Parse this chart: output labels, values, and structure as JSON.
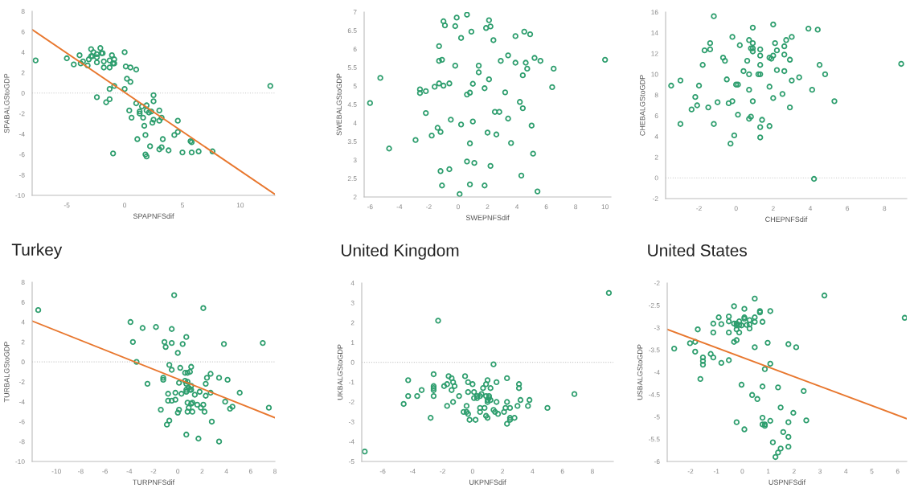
{
  "chart_data": [
    {
      "type": "scatter",
      "xlabel": "SPAPNFSdif",
      "ylabel": "SPABALGStoGDP",
      "xlim": [
        -8,
        13
      ],
      "ylim": [
        -10,
        8
      ],
      "xticks": [
        -5,
        0,
        5,
        10
      ],
      "yticks": [
        -10,
        -8,
        -6,
        -4,
        -2,
        0,
        2,
        4,
        6,
        8
      ],
      "grid": false,
      "ref_lines": [
        {
          "axis": "y",
          "value": 0,
          "line_style": "dotted",
          "color": "#c8c8c8"
        }
      ],
      "series": [
        {
          "color": "#2e9e6e",
          "marker": "circle",
          "x": [
            -7.7,
            -5.0,
            -4.4,
            -3.9,
            -3.8,
            -3.6,
            -3.2,
            -3.1,
            -2.9,
            -2.9,
            -2.8,
            -2.7,
            -2.4,
            -2.4,
            -2.4,
            -2.4,
            -2.1,
            -2.0,
            -1.9,
            -1.8,
            -1.8,
            -1.6,
            -1.3,
            -1.3,
            -1.3,
            -1.3,
            -1.1,
            -1.0,
            -1.0,
            -0.9,
            -0.9,
            -0.9,
            0.0,
            0.0,
            0.1,
            0.2,
            0.5,
            0.5,
            1.0,
            1.0,
            0.4,
            0.6,
            1.1,
            1.3,
            1.3,
            1.5,
            1.6,
            1.7,
            1.8,
            1.8,
            1.9,
            1.9,
            1.9,
            2.1,
            2.2,
            2.3,
            2.4,
            2.5,
            2.5,
            2.5,
            3.0,
            3.0,
            3.0,
            3.2,
            3.2,
            3.3,
            3.8,
            4.3,
            4.6,
            4.6,
            5.0,
            5.7,
            5.8,
            5.8,
            6.4,
            7.6,
            12.6
          ],
          "values": [
            3.2,
            3.4,
            2.8,
            3.7,
            2.9,
            3.1,
            2.7,
            3.3,
            4.3,
            3.6,
            3.6,
            4.0,
            3.8,
            3.5,
            3.0,
            -0.4,
            4.4,
            3.9,
            3.9,
            3.1,
            2.5,
            -0.9,
            0.4,
            3.2,
            2.5,
            -0.6,
            3.7,
            2.9,
            -5.9,
            3.3,
            2.9,
            0.7,
            4.0,
            0.4,
            2.6,
            1.4,
            2.5,
            1.1,
            2.3,
            -1.0,
            -1.7,
            -2.4,
            -4.5,
            -2.0,
            -1.8,
            -1.3,
            -2.4,
            -3.2,
            -4.1,
            -6.0,
            -1.2,
            -1.7,
            -6.2,
            -1.9,
            -5.2,
            -1.8,
            -2.9,
            -0.8,
            -0.2,
            -2.6,
            -1.7,
            -2.7,
            -5.5,
            -5.3,
            -2.4,
            -4.5,
            -5.6,
            -4.1,
            -2.7,
            -3.8,
            -5.8,
            -4.7,
            -4.8,
            -5.8,
            -5.7,
            -5.7,
            0.7
          ]
        },
        {
          "type": "line",
          "color": "#e8772e",
          "line_style": "solid",
          "x": [
            -8,
            13
          ],
          "values": [
            6.2,
            -9.9
          ]
        }
      ]
    },
    {
      "type": "scatter",
      "xlabel": "SWEPNFSdif",
      "ylabel": "SWEBALGStoGDP",
      "xlim": [
        -6.4,
        10.4
      ],
      "ylim": [
        2,
        7
      ],
      "xticks": [
        -6,
        -4,
        -2,
        0,
        2,
        4,
        6,
        8,
        10
      ],
      "yticks": [
        2,
        2.5,
        3,
        3.5,
        4,
        4.5,
        5,
        5.5,
        6,
        6.5,
        7
      ],
      "grid": false,
      "series": [
        {
          "color": "#2e9e6e",
          "marker": "circle",
          "x": [
            -6.0,
            -5.3,
            -4.7,
            -2.9,
            -2.6,
            -2.6,
            -2.2,
            -2.2,
            -1.8,
            -1.6,
            -1.4,
            -1.3,
            -1.3,
            -1.3,
            -1.2,
            -1.2,
            -1.1,
            -1.1,
            -1.0,
            -1.0,
            -0.9,
            -0.6,
            -0.6,
            -0.5,
            -0.2,
            -0.2,
            -0.1,
            0.1,
            0.2,
            0.2,
            0.6,
            0.6,
            0.6,
            0.8,
            0.8,
            0.8,
            0.9,
            1.0,
            1.0,
            1.1,
            1.4,
            1.4,
            1.8,
            1.8,
            1.9,
            2.0,
            2.1,
            2.1,
            2.2,
            2.2,
            2.4,
            2.5,
            2.6,
            2.8,
            2.9,
            3.2,
            3.4,
            3.4,
            3.6,
            3.9,
            3.9,
            4.2,
            4.3,
            4.4,
            4.4,
            4.5,
            4.6,
            4.7,
            4.9,
            5.0,
            5.1,
            5.2,
            5.4,
            5.6,
            6.4,
            6.5,
            10.0
          ],
          "values": [
            4.54,
            5.22,
            3.31,
            3.54,
            4.91,
            4.81,
            4.86,
            4.27,
            3.66,
            4.98,
            3.87,
            6.08,
            5.68,
            5.07,
            3.76,
            2.7,
            5.71,
            2.31,
            6.75,
            5.01,
            6.64,
            5.07,
            2.75,
            4.09,
            6.62,
            5.55,
            6.85,
            2.08,
            3.96,
            6.3,
            6.93,
            4.77,
            2.96,
            4.82,
            3.45,
            2.34,
            6.47,
            5.06,
            4.04,
            2.92,
            5.55,
            5.37,
            4.94,
            2.31,
            6.57,
            3.74,
            5.18,
            6.78,
            6.61,
            2.84,
            6.24,
            4.3,
            3.69,
            4.3,
            5.68,
            4.83,
            5.83,
            4.12,
            3.46,
            6.35,
            5.63,
            4.57,
            2.58,
            4.4,
            5.29,
            6.47,
            5.63,
            5.47,
            6.4,
            3.93,
            3.17,
            5.76,
            2.15,
            5.68,
            4.97,
            5.47,
            5.71
          ]
        }
      ]
    },
    {
      "type": "scatter",
      "xlabel": "CHEPNFSdif",
      "ylabel": "CHEBALGStoGDP",
      "xlim": [
        -3.8,
        9.2
      ],
      "ylim": [
        -2,
        16
      ],
      "xticks": [
        -2,
        0,
        2,
        4,
        6,
        8
      ],
      "yticks": [
        -2,
        0,
        2,
        4,
        6,
        8,
        10,
        12,
        14,
        16
      ],
      "grid": false,
      "ref_lines": [
        {
          "axis": "y",
          "value": 0,
          "line_style": "dotted",
          "color": "#c8c8c8"
        }
      ],
      "series": [
        {
          "color": "#2e9e6e",
          "marker": "circle",
          "x": [
            -3.5,
            -3.0,
            -3.0,
            -2.4,
            -2.2,
            -2.1,
            -2.0,
            -1.8,
            -1.7,
            -1.5,
            -1.4,
            -1.4,
            -1.2,
            -1.2,
            -1.0,
            -0.7,
            -0.6,
            -0.5,
            -0.4,
            -0.3,
            -0.2,
            -0.2,
            -0.1,
            0.0,
            0.1,
            0.1,
            0.2,
            0.4,
            0.6,
            0.7,
            0.7,
            0.7,
            0.7,
            0.8,
            0.8,
            0.9,
            0.9,
            0.9,
            0.9,
            0.9,
            1.2,
            1.3,
            1.3,
            1.3,
            1.3,
            1.3,
            1.3,
            1.4,
            1.8,
            1.8,
            1.8,
            1.9,
            2.0,
            2.0,
            2.0,
            2.1,
            2.2,
            2.2,
            2.5,
            2.6,
            2.6,
            2.6,
            2.7,
            2.9,
            2.9,
            3.0,
            3.0,
            3.4,
            3.9,
            4.1,
            4.2,
            4.4,
            4.5,
            4.8,
            5.3,
            8.9
          ],
          "values": [
            8.9,
            9.4,
            5.2,
            6.6,
            7.8,
            7.0,
            8.9,
            10.9,
            12.3,
            6.8,
            12.4,
            13.0,
            15.6,
            5.2,
            7.3,
            11.6,
            11.3,
            9.5,
            7.2,
            3.3,
            13.6,
            7.4,
            4.1,
            9.0,
            9.0,
            6.1,
            12.8,
            10.3,
            11.3,
            5.7,
            13.3,
            10.0,
            8.5,
            12.5,
            5.9,
            12.5,
            14.5,
            13.0,
            12.2,
            7.4,
            10.0,
            10.0,
            12.4,
            11.8,
            10.9,
            4.9,
            3.9,
            5.6,
            11.6,
            8.8,
            5.0,
            11.5,
            11.8,
            14.8,
            7.7,
            13.0,
            12.3,
            10.4,
            8.1,
            12.7,
            11.9,
            10.3,
            13.3,
            11.4,
            6.8,
            13.6,
            9.4,
            9.7,
            14.4,
            8.5,
            -0.1,
            14.3,
            10.9,
            10.0,
            7.4,
            11.0
          ]
        }
      ]
    },
    {
      "type": "scatter",
      "title": "Turkey",
      "xlabel": "TURPNFSdif",
      "ylabel": "TURBALGStoGDP",
      "xlim": [
        -12,
        8
      ],
      "ylim": [
        -10,
        8
      ],
      "xticks": [
        -10,
        -8,
        -6,
        -4,
        -2,
        0,
        2,
        4,
        6,
        8
      ],
      "yticks": [
        -10,
        -8,
        -6,
        -4,
        -2,
        0,
        2,
        4,
        6,
        8
      ],
      "grid": false,
      "ref_lines": [
        {
          "axis": "y",
          "value": 0,
          "line_style": "dotted",
          "color": "#c8c8c8"
        }
      ],
      "series": [
        {
          "color": "#2e9e6e",
          "marker": "circle",
          "x": [
            -11.5,
            -3.9,
            -3.7,
            -3.4,
            -2.9,
            -2.5,
            -1.8,
            -1.4,
            -1.2,
            -1.2,
            -1.1,
            -1.0,
            -0.9,
            -0.8,
            -0.8,
            -0.7,
            -0.7,
            -0.5,
            -0.5,
            -0.5,
            -0.5,
            -0.3,
            -0.2,
            -0.2,
            0.0,
            0.0,
            0.1,
            0.1,
            0.2,
            0.3,
            0.4,
            0.6,
            0.6,
            0.7,
            0.7,
            0.7,
            0.7,
            0.7,
            0.8,
            0.8,
            0.8,
            0.8,
            0.9,
            0.9,
            1.0,
            1.0,
            1.1,
            1.1,
            1.1,
            1.1,
            1.2,
            1.2,
            1.4,
            1.6,
            1.7,
            1.8,
            1.9,
            2.1,
            2.1,
            2.2,
            2.3,
            2.3,
            2.4,
            2.7,
            2.7,
            2.8,
            3.4,
            3.4,
            3.8,
            3.9,
            4.1,
            4.3,
            4.5,
            5.1,
            7.0,
            7.5
          ],
          "values": [
            5.2,
            4.0,
            2.0,
            0.0,
            3.4,
            -2.2,
            3.5,
            -4.8,
            -1.6,
            -1.8,
            2.0,
            1.5,
            -6.3,
            -3.2,
            -3.9,
            -0.3,
            -5.9,
            1.9,
            3.3,
            -3.9,
            -0.8,
            6.7,
            -3.1,
            -3.8,
            0.9,
            -5.1,
            -4.8,
            -2.1,
            -0.6,
            -3.2,
            1.8,
            -1.1,
            -1.9,
            -2.2,
            2.5,
            -3.0,
            -7.3,
            -2.8,
            -1.1,
            -2.0,
            -4.1,
            -5.0,
            -2.6,
            -4.6,
            -2.8,
            -1.0,
            -2.4,
            -4.2,
            -2.8,
            -0.5,
            -4.1,
            -5.0,
            -3.3,
            -4.3,
            -7.7,
            -3.0,
            -4.6,
            5.4,
            -4.3,
            -5.0,
            -3.4,
            -2.2,
            -1.6,
            -1.2,
            -3.1,
            -6.0,
            -1.6,
            -8.0,
            1.8,
            -4.0,
            -1.8,
            -4.7,
            -4.5,
            -3.1,
            1.9,
            -4.6
          ]
        },
        {
          "type": "line",
          "color": "#e8772e",
          "line_style": "solid",
          "x": [
            -12,
            8
          ],
          "values": [
            4.1,
            -5.6
          ]
        }
      ]
    },
    {
      "type": "scatter",
      "title": "United Kingdom",
      "xlabel": "UKPNFSdif",
      "ylabel": "UKBALGStoGDP",
      "xlim": [
        -7.4,
        9.4
      ],
      "ylim": [
        -5,
        4
      ],
      "xticks": [
        -6,
        -4,
        -2,
        0,
        2,
        4,
        6,
        8
      ],
      "yticks": [
        -5,
        -4,
        -3,
        -2,
        -1,
        0,
        1,
        2,
        3,
        4
      ],
      "grid": false,
      "ref_lines": [
        {
          "axis": "y",
          "value": 0,
          "line_style": "dotted",
          "color": "#c8c8c8"
        }
      ],
      "series": [
        {
          "color": "#2e9e6e",
          "marker": "circle",
          "x": [
            -7.2,
            -4.6,
            -4.3,
            -4.3,
            -3.7,
            -3.4,
            -2.8,
            -2.6,
            -2.6,
            -2.6,
            -2.6,
            -2.6,
            -2.3,
            -1.9,
            -1.7,
            -1.7,
            -1.6,
            -1.4,
            -1.4,
            -1.3,
            -1.3,
            -1.2,
            -0.9,
            -0.6,
            -0.5,
            -0.4,
            -0.4,
            -0.3,
            -0.3,
            -0.3,
            -0.2,
            0.0,
            0.1,
            0.1,
            0.2,
            0.3,
            0.3,
            0.5,
            0.5,
            0.5,
            0.6,
            0.7,
            0.8,
            0.9,
            0.9,
            0.9,
            1.0,
            1.0,
            1.0,
            1.0,
            1.1,
            1.1,
            1.2,
            1.2,
            1.4,
            1.4,
            1.5,
            1.6,
            1.6,
            1.7,
            2.1,
            2.2,
            2.3,
            2.3,
            2.5,
            2.5,
            2.5,
            2.3,
            2.8,
            3.0,
            3.1,
            3.1,
            3.2,
            3.7,
            3.8,
            5.0,
            6.8,
            9.1
          ],
          "values": [
            -4.5,
            -2.1,
            -0.9,
            -1.7,
            -1.7,
            -1.4,
            -2.8,
            -0.6,
            -1.2,
            -1.3,
            -1.4,
            -1.7,
            2.1,
            -1.2,
            -1.1,
            -2.2,
            -0.7,
            -0.8,
            -1.4,
            -1.0,
            -2.0,
            -1.2,
            -1.7,
            -2.5,
            -0.7,
            -2.5,
            -2.2,
            -2.6,
            -1.0,
            -1.5,
            -2.9,
            -1.1,
            -1.5,
            -1.8,
            -2.9,
            -1.8,
            -1.7,
            -2.5,
            -1.7,
            -2.3,
            -1.6,
            -1.3,
            -2.3,
            -1.1,
            -1.7,
            -2.7,
            -2.8,
            -0.9,
            -2.0,
            -1.9,
            -1.7,
            -1.8,
            -1.9,
            -1.3,
            -2.4,
            -0.1,
            -2.5,
            -1.0,
            -2.0,
            -2.6,
            -2.5,
            -2.3,
            -2.0,
            -0.8,
            -2.3,
            -2.8,
            -2.9,
            -3.1,
            -2.8,
            -2.2,
            -1.1,
            -1.3,
            -1.9,
            -2.2,
            -1.9,
            -2.3,
            -1.6,
            3.5
          ]
        }
      ]
    },
    {
      "type": "scatter",
      "title": "United States",
      "xlabel": "USPNFSdif",
      "ylabel": "USBALGStoGDP",
      "xlim": [
        -2.9,
        6.35
      ],
      "ylim": [
        -6,
        -2
      ],
      "xticks": [
        -2,
        -1,
        0,
        1,
        2,
        3,
        4,
        5,
        6
      ],
      "yticks": [
        -6,
        -5.5,
        -5,
        -4.5,
        -4,
        -3.5,
        -3,
        -2.5,
        -2
      ],
      "grid": false,
      "series": [
        {
          "color": "#2e9e6e",
          "marker": "circle",
          "x": [
            -2.63,
            -2.02,
            -1.82,
            -1.82,
            -1.72,
            -1.62,
            -1.52,
            -1.52,
            -1.52,
            -1.22,
            -1.12,
            -1.12,
            -1.12,
            -0.91,
            -0.81,
            -0.81,
            -0.52,
            -0.52,
            -0.52,
            -0.52,
            -0.32,
            -0.32,
            -0.32,
            -0.22,
            -0.22,
            -0.22,
            -0.22,
            -0.22,
            -0.12,
            -0.12,
            -0.12,
            -0.03,
            -0.03,
            0.08,
            0.08,
            0.08,
            0.08,
            0.17,
            0.28,
            0.28,
            0.28,
            0.38,
            0.48,
            0.48,
            0.48,
            0.48,
            0.58,
            0.68,
            0.68,
            0.78,
            0.78,
            0.78,
            0.78,
            0.87,
            0.87,
            0.87,
            0.98,
            1.08,
            1.08,
            1.08,
            1.18,
            1.28,
            1.38,
            1.38,
            1.48,
            1.48,
            1.58,
            1.78,
            1.78,
            1.78,
            1.78,
            1.97,
            2.08,
            2.37,
            2.47,
            3.17,
            6.27
          ],
          "values": [
            -3.47,
            -3.35,
            -3.32,
            -3.54,
            -3.04,
            -4.15,
            -3.67,
            -3.75,
            -3.83,
            -3.59,
            -2.91,
            -3.11,
            -3.67,
            -2.77,
            -2.92,
            -3.79,
            -2.75,
            -2.86,
            -3.11,
            -3.73,
            -2.52,
            -2.91,
            -3.32,
            -2.91,
            -3.04,
            -3.28,
            -5.12,
            -2.95,
            -2.86,
            -2.94,
            -3.11,
            -2.95,
            -4.28,
            -2.58,
            -2.77,
            -2.8,
            -5.28,
            -2.94,
            -2.83,
            -2.93,
            -3.02,
            -4.51,
            -2.35,
            -2.77,
            -2.87,
            -3.44,
            -4.6,
            -2.63,
            -2.66,
            -2.87,
            -4.32,
            -5.02,
            -5.17,
            -5.17,
            -5.2,
            -3.93,
            -3.34,
            -2.63,
            -3.81,
            -5.09,
            -5.57,
            -5.9,
            -5.8,
            -4.34,
            -4.79,
            -5.71,
            -5.34,
            -3.37,
            -5.12,
            -5.45,
            -5.67,
            -4.91,
            -3.44,
            -4.42,
            -5.08,
            -2.28,
            -2.78
          ]
        },
        {
          "type": "line",
          "color": "#e8772e",
          "line_style": "solid",
          "x": [
            -2.9,
            6.35
          ],
          "values": [
            -3.04,
            -5.04
          ]
        }
      ]
    }
  ]
}
